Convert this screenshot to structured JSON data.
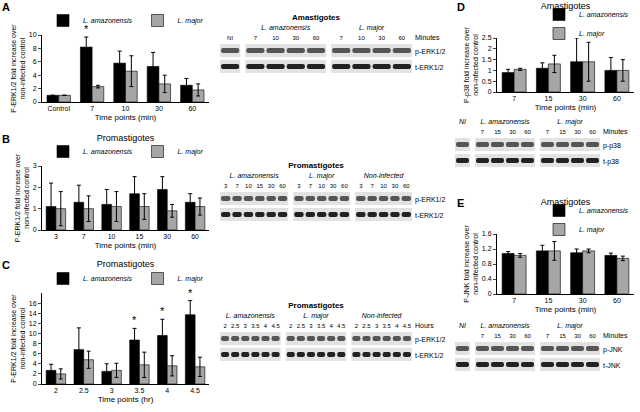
{
  "chart_data": [
    {
      "panel": "A",
      "type": "bar",
      "categories": [
        "Control",
        "7",
        "10",
        "30",
        "60"
      ],
      "x_label": "Time points (min)",
      "y_label": [
        "P-ERK1/2 fold increase over",
        "non-infected control"
      ],
      "ylim": [
        0,
        10
      ],
      "yticks": [
        0,
        2,
        4,
        6,
        8,
        10
      ],
      "grid": false,
      "legend": "top right",
      "series": [
        {
          "name": "L. amazonensis",
          "color": "#000000",
          "values": [
            1,
            8.2,
            5.8,
            5.3,
            2.5
          ],
          "errors": [
            0,
            1.5,
            1.8,
            2.1,
            1.0
          ]
        },
        {
          "name": "L. major",
          "color": "#a6a6a6",
          "values": [
            1,
            2.3,
            4.6,
            2.7,
            1.8
          ],
          "errors": [
            0,
            0.2,
            2.3,
            1.3,
            0.9
          ]
        }
      ],
      "annotations": [
        {
          "category": "7",
          "series": "L. amazonensis",
          "text": "*"
        }
      ]
    },
    {
      "panel": "B",
      "type": "bar",
      "title": "Promastigotes",
      "categories": [
        "3",
        "7",
        "10",
        "15",
        "30",
        "60"
      ],
      "x_label": "Time points (min)",
      "y_label": [
        "P-ERK1/2 fold increase over",
        "non-infected control"
      ],
      "ylim": [
        0,
        3
      ],
      "yticks": [
        0,
        1,
        2,
        3
      ],
      "grid": false,
      "legend": "top right",
      "series": [
        {
          "name": "L. amazonensis",
          "color": "#000000",
          "values": [
            1.1,
            1.3,
            1.2,
            1.7,
            1.9,
            1.3
          ],
          "errors": [
            1.1,
            0.8,
            0.7,
            0.8,
            0.6,
            0.4
          ]
        },
        {
          "name": "L. major",
          "color": "#a6a6a6",
          "values": [
            1.0,
            1.0,
            1.1,
            1.1,
            0.9,
            1.1
          ],
          "errors": [
            0.8,
            0.6,
            0.7,
            0.6,
            0.3,
            0.4
          ]
        }
      ]
    },
    {
      "panel": "C",
      "type": "bar",
      "title": "Promastigotes",
      "categories": [
        "2",
        "2.5",
        "3",
        "3.5",
        "4",
        "4.5"
      ],
      "x_label": "Time points (hr)",
      "y_label": [
        "P-ERK1/2 fold increase over",
        "non-infected control"
      ],
      "ylim": [
        0,
        18
      ],
      "yticks": [
        0,
        2,
        4,
        6,
        8,
        10,
        12,
        14,
        16
      ],
      "grid": false,
      "legend": "top right",
      "series": [
        {
          "name": "L. amazonensis",
          "color": "#000000",
          "values": [
            2.7,
            6.8,
            2.5,
            8.7,
            9.6,
            13.7
          ],
          "errors": [
            1.2,
            4.3,
            1.5,
            2.3,
            3.2,
            2.8
          ]
        },
        {
          "name": "L. major",
          "color": "#a6a6a6",
          "values": [
            2.0,
            4.8,
            2.7,
            3.8,
            3.6,
            3.4
          ],
          "errors": [
            1.0,
            1.7,
            1.4,
            2.5,
            2.0,
            1.9
          ]
        }
      ],
      "annotations": [
        {
          "category": "3.5",
          "series": "L. amazonensis",
          "text": "*"
        },
        {
          "category": "4",
          "series": "L. amazonensis",
          "text": "*"
        },
        {
          "category": "4.5",
          "series": "L. amazonensis",
          "text": "*"
        }
      ]
    },
    {
      "panel": "D",
      "type": "bar",
      "title": "Amastigotes",
      "categories": [
        "7",
        "15",
        "30",
        "60"
      ],
      "x_label": "Time points (min)",
      "y_label": [
        "P-p38 fold increase over",
        "non-infected control"
      ],
      "ylim": [
        0,
        2.5
      ],
      "yticks": [
        0,
        0.5,
        1,
        1.5,
        2,
        2.5
      ],
      "grid": false,
      "legend": "top right",
      "series": [
        {
          "name": "L. amazonensis",
          "color": "#000000",
          "values": [
            0.9,
            1.1,
            1.4,
            1.0
          ],
          "errors": [
            0.15,
            0.25,
            1.1,
            0.6
          ]
        },
        {
          "name": "L. major",
          "color": "#a6a6a6",
          "values": [
            1.05,
            1.3,
            1.4,
            1.0
          ],
          "errors": [
            0.05,
            0.4,
            0.9,
            0.5
          ]
        }
      ]
    },
    {
      "panel": "E",
      "type": "bar",
      "title": "Amastigotes",
      "categories": [
        "7",
        "15",
        "30",
        "60"
      ],
      "x_label": "Time points (min)",
      "y_label": [
        "P-JNK fold increase over",
        "non-infected control"
      ],
      "ylim": [
        0,
        1.6
      ],
      "yticks": [
        0,
        0.4,
        0.8,
        1.2,
        1.6
      ],
      "grid": false,
      "legend": "top right",
      "series": [
        {
          "name": "L. amazonensis",
          "color": "#000000",
          "values": [
            1.08,
            1.15,
            1.1,
            1.03
          ],
          "errors": [
            0.05,
            0.15,
            0.1,
            0.06
          ]
        },
        {
          "name": "L. major",
          "color": "#a6a6a6",
          "values": [
            1.03,
            1.15,
            1.15,
            0.95
          ],
          "errors": [
            0.05,
            0.25,
            0.05,
            0.06
          ]
        }
      ]
    }
  ],
  "blots": [
    {
      "panel": "A",
      "title": "Amastigotes",
      "unit": "Minutes",
      "rows": [
        "p-ERK1/2",
        "t-ERK1/2"
      ],
      "groups": [
        {
          "name": null,
          "lanes": [
            "NI"
          ]
        },
        {
          "name": "L. amazonensis",
          "lanes": [
            "7",
            "10",
            "30",
            "60"
          ]
        },
        {
          "name": "L. major",
          "lanes": [
            "7",
            "10",
            "30",
            "60"
          ]
        }
      ]
    },
    {
      "panel": "B",
      "title": "Promastigotes",
      "rows": [
        "p-ERK1/2",
        "t-ERK1/2"
      ],
      "groups": [
        {
          "name": "L. amazonensis",
          "lanes": [
            "3",
            "7",
            "10",
            "15",
            "30",
            "60"
          ]
        },
        {
          "name": "L. major",
          "lanes": [
            "3",
            "7",
            "10",
            "30",
            "60"
          ]
        },
        {
          "name": "Non-infected",
          "lanes": [
            "3",
            "7",
            "10",
            "30",
            "60"
          ]
        }
      ]
    },
    {
      "panel": "C",
      "title": "Promastigotes",
      "unit": "Hours",
      "rows": [
        "p-ERK1/2",
        "t-ERK1/2"
      ],
      "groups": [
        {
          "name": "L. amazonensis",
          "lanes": [
            "2",
            "2.5",
            "3",
            "3.5",
            "4",
            "4.5"
          ]
        },
        {
          "name": "L. major",
          "lanes": [
            "2",
            "2.5",
            "3",
            "3.5",
            "4",
            "4.5"
          ]
        },
        {
          "name": "Non-infected",
          "lanes": [
            "2",
            "2.5",
            "3",
            "3.5",
            "4",
            "4.5"
          ]
        }
      ]
    },
    {
      "panel": "D",
      "unit": "Minutes",
      "rows": [
        "p-p38",
        "t-p38"
      ],
      "groups": [
        {
          "name": "NI",
          "lanes": [
            null
          ]
        },
        {
          "name": "L. amazonensis",
          "lanes": [
            "7",
            "15",
            "30",
            "60"
          ]
        },
        {
          "name": "L. major",
          "lanes": [
            "7",
            "15",
            "30",
            "60"
          ]
        }
      ]
    },
    {
      "panel": "E",
      "unit": "Minutes",
      "rows": [
        "p-JNK",
        "t-JNK"
      ],
      "groups": [
        {
          "name": "NI",
          "lanes": [
            null
          ]
        },
        {
          "name": "L. amazonensis",
          "lanes": [
            "7",
            "15",
            "30",
            "60"
          ]
        },
        {
          "name": "L. major",
          "lanes": [
            "7",
            "15",
            "30",
            "60"
          ]
        }
      ]
    }
  ]
}
